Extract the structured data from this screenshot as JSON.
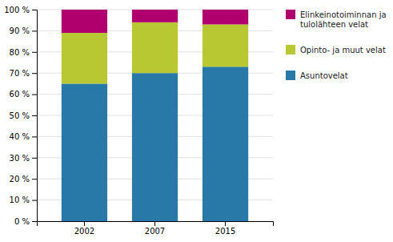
{
  "chart_data": {
    "type": "bar",
    "stacked": true,
    "categories": [
      "2002",
      "2007",
      "2015"
    ],
    "series": [
      {
        "name": "Asuntovelat",
        "color": "#2878a8",
        "values": [
          65,
          70,
          73
        ]
      },
      {
        "name": "Opinto- ja muut velat",
        "color": "#b8c832",
        "values": [
          24,
          24,
          20
        ]
      },
      {
        "name": "Elinkeinotoiminnan ja\ntulolähteen velat",
        "color": "#b0006e",
        "values": [
          11,
          6,
          7
        ]
      }
    ],
    "ylim": [
      0,
      100
    ],
    "yticks": [
      {
        "value": 0,
        "label": "0 %"
      },
      {
        "value": 10,
        "label": "10 %"
      },
      {
        "value": 20,
        "label": "20 %"
      },
      {
        "value": 30,
        "label": "30 %"
      },
      {
        "value": 40,
        "label": "40 %"
      },
      {
        "value": 50,
        "label": "50 %"
      },
      {
        "value": 60,
        "label": "60 %"
      },
      {
        "value": 70,
        "label": "70 %"
      },
      {
        "value": 80,
        "label": "80 %"
      },
      {
        "value": 90,
        "label": "90 %"
      },
      {
        "value": 100,
        "label": "100 %"
      }
    ],
    "grid": true,
    "legend": "right"
  }
}
